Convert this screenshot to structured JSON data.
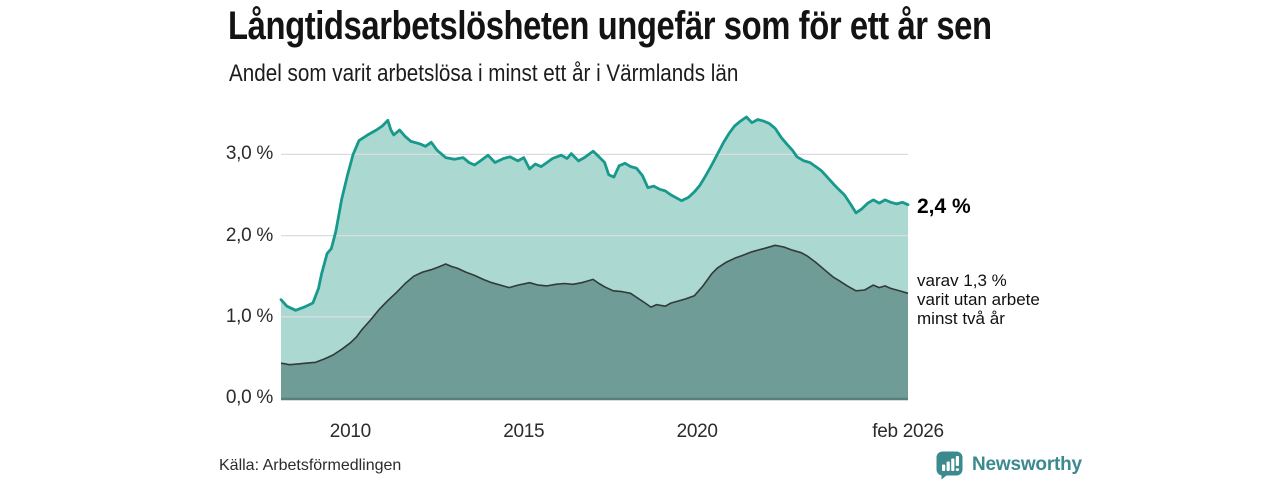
{
  "source": "Källa: Arbetsförmedlingen",
  "branding": {
    "name": "Newsworthy",
    "icon": "newsworthy-bubble-barchart-icon",
    "color": "#3c8a8e"
  },
  "colors": {
    "area_1yr_fill": "#abd8d1",
    "line_1yr": "#17998b",
    "area_2yr_fill": "#6f9c97",
    "line_2yr": "#313b38",
    "grid": "#d9dde2",
    "baseline": "#587f7a",
    "brand_teal": "#3c8a8e",
    "text_dark": "#131313"
  },
  "chart_data": {
    "type": "area",
    "title": "Långtidsarbetslösheten ungefär som för ett år sen",
    "subtitle": "Andel som varit arbetslösa i minst ett år i Värmlands län",
    "unit": "%",
    "xlim": [
      2008.0,
      2026.08
    ],
    "ylim": [
      0,
      3.6
    ],
    "grid": "horizontal",
    "legend_position": "inline-right",
    "y_ticks": [
      {
        "value": 0,
        "label": "0,0 %"
      },
      {
        "value": 1,
        "label": "1,0 %"
      },
      {
        "value": 2,
        "label": "2,0 %"
      },
      {
        "value": 3,
        "label": "3,0 %"
      }
    ],
    "x_ticks": [
      {
        "year": 2010,
        "label": "2010"
      },
      {
        "year": 2015,
        "label": "2015"
      },
      {
        "year": 2020,
        "label": "2020"
      },
      {
        "year": 2026.08,
        "label": "feb 2026"
      }
    ],
    "annotations": {
      "latest_total": "2,4 %",
      "latest_secondary": "varav 1,3 %\nvarit utan arbete\nminst två år"
    },
    "series": [
      {
        "name": "Arbetslösa minst ett år",
        "latest_value": 2.4,
        "points": [
          [
            2008.0,
            1.21
          ],
          [
            2008.17,
            1.13
          ],
          [
            2008.42,
            1.08
          ],
          [
            2008.67,
            1.12
          ],
          [
            2008.92,
            1.17
          ],
          [
            2009.08,
            1.35
          ],
          [
            2009.17,
            1.53
          ],
          [
            2009.33,
            1.78
          ],
          [
            2009.45,
            1.84
          ],
          [
            2009.58,
            2.05
          ],
          [
            2009.75,
            2.45
          ],
          [
            2009.92,
            2.75
          ],
          [
            2010.08,
            3.0
          ],
          [
            2010.25,
            3.17
          ],
          [
            2010.5,
            3.24
          ],
          [
            2010.75,
            3.3
          ],
          [
            2010.92,
            3.35
          ],
          [
            2011.08,
            3.42
          ],
          [
            2011.17,
            3.3
          ],
          [
            2011.25,
            3.24
          ],
          [
            2011.42,
            3.3
          ],
          [
            2011.58,
            3.22
          ],
          [
            2011.75,
            3.16
          ],
          [
            2012.0,
            3.13
          ],
          [
            2012.17,
            3.1
          ],
          [
            2012.33,
            3.15
          ],
          [
            2012.5,
            3.05
          ],
          [
            2012.75,
            2.96
          ],
          [
            2013.0,
            2.94
          ],
          [
            2013.25,
            2.96
          ],
          [
            2013.42,
            2.9
          ],
          [
            2013.58,
            2.87
          ],
          [
            2013.75,
            2.92
          ],
          [
            2013.97,
            2.99
          ],
          [
            2014.17,
            2.9
          ],
          [
            2014.42,
            2.95
          ],
          [
            2014.6,
            2.97
          ],
          [
            2014.83,
            2.92
          ],
          [
            2015.0,
            2.96
          ],
          [
            2015.17,
            2.82
          ],
          [
            2015.33,
            2.88
          ],
          [
            2015.5,
            2.85
          ],
          [
            2015.67,
            2.9
          ],
          [
            2015.83,
            2.95
          ],
          [
            2016.08,
            2.99
          ],
          [
            2016.25,
            2.95
          ],
          [
            2016.37,
            3.01
          ],
          [
            2016.58,
            2.92
          ],
          [
            2016.75,
            2.96
          ],
          [
            2017.0,
            3.04
          ],
          [
            2017.17,
            2.97
          ],
          [
            2017.33,
            2.9
          ],
          [
            2017.45,
            2.75
          ],
          [
            2017.6,
            2.72
          ],
          [
            2017.75,
            2.86
          ],
          [
            2017.92,
            2.89
          ],
          [
            2018.08,
            2.85
          ],
          [
            2018.25,
            2.83
          ],
          [
            2018.42,
            2.74
          ],
          [
            2018.58,
            2.59
          ],
          [
            2018.75,
            2.61
          ],
          [
            2018.92,
            2.57
          ],
          [
            2019.08,
            2.55
          ],
          [
            2019.25,
            2.5
          ],
          [
            2019.42,
            2.46
          ],
          [
            2019.55,
            2.43
          ],
          [
            2019.75,
            2.47
          ],
          [
            2019.92,
            2.54
          ],
          [
            2020.08,
            2.62
          ],
          [
            2020.25,
            2.74
          ],
          [
            2020.42,
            2.87
          ],
          [
            2020.58,
            3.0
          ],
          [
            2020.75,
            3.14
          ],
          [
            2020.92,
            3.26
          ],
          [
            2021.08,
            3.35
          ],
          [
            2021.25,
            3.41
          ],
          [
            2021.42,
            3.46
          ],
          [
            2021.58,
            3.39
          ],
          [
            2021.75,
            3.43
          ],
          [
            2021.92,
            3.41
          ],
          [
            2022.08,
            3.38
          ],
          [
            2022.25,
            3.32
          ],
          [
            2022.42,
            3.21
          ],
          [
            2022.58,
            3.13
          ],
          [
            2022.75,
            3.05
          ],
          [
            2022.88,
            2.97
          ],
          [
            2023.08,
            2.92
          ],
          [
            2023.25,
            2.9
          ],
          [
            2023.42,
            2.85
          ],
          [
            2023.58,
            2.8
          ],
          [
            2023.75,
            2.72
          ],
          [
            2023.92,
            2.64
          ],
          [
            2024.08,
            2.57
          ],
          [
            2024.25,
            2.5
          ],
          [
            2024.42,
            2.39
          ],
          [
            2024.58,
            2.28
          ],
          [
            2024.75,
            2.33
          ],
          [
            2024.92,
            2.4
          ],
          [
            2025.08,
            2.44
          ],
          [
            2025.25,
            2.4
          ],
          [
            2025.42,
            2.44
          ],
          [
            2025.58,
            2.41
          ],
          [
            2025.75,
            2.39
          ],
          [
            2025.92,
            2.41
          ],
          [
            2026.08,
            2.38
          ]
        ]
      },
      {
        "name": "Utan arbete minst två år",
        "latest_value": 1.3,
        "points": [
          [
            2008.0,
            0.43
          ],
          [
            2008.25,
            0.41
          ],
          [
            2008.5,
            0.42
          ],
          [
            2008.75,
            0.43
          ],
          [
            2009.0,
            0.44
          ],
          [
            2009.25,
            0.48
          ],
          [
            2009.5,
            0.53
          ],
          [
            2009.75,
            0.6
          ],
          [
            2010.0,
            0.68
          ],
          [
            2010.17,
            0.75
          ],
          [
            2010.33,
            0.84
          ],
          [
            2010.58,
            0.96
          ],
          [
            2010.83,
            1.09
          ],
          [
            2011.08,
            1.2
          ],
          [
            2011.33,
            1.3
          ],
          [
            2011.58,
            1.41
          ],
          [
            2011.83,
            1.5
          ],
          [
            2012.08,
            1.55
          ],
          [
            2012.33,
            1.58
          ],
          [
            2012.58,
            1.62
          ],
          [
            2012.75,
            1.65
          ],
          [
            2012.92,
            1.62
          ],
          [
            2013.08,
            1.6
          ],
          [
            2013.33,
            1.55
          ],
          [
            2013.58,
            1.51
          ],
          [
            2013.83,
            1.46
          ],
          [
            2014.08,
            1.42
          ],
          [
            2014.33,
            1.39
          ],
          [
            2014.58,
            1.36
          ],
          [
            2014.83,
            1.39
          ],
          [
            2015.17,
            1.42
          ],
          [
            2015.42,
            1.39
          ],
          [
            2015.67,
            1.38
          ],
          [
            2015.92,
            1.4
          ],
          [
            2016.17,
            1.41
          ],
          [
            2016.42,
            1.4
          ],
          [
            2016.67,
            1.42
          ],
          [
            2016.83,
            1.44
          ],
          [
            2017.0,
            1.46
          ],
          [
            2017.17,
            1.41
          ],
          [
            2017.33,
            1.37
          ],
          [
            2017.58,
            1.32
          ],
          [
            2017.83,
            1.31
          ],
          [
            2018.08,
            1.29
          ],
          [
            2018.25,
            1.24
          ],
          [
            2018.5,
            1.17
          ],
          [
            2018.67,
            1.12
          ],
          [
            2018.83,
            1.15
          ],
          [
            2019.08,
            1.13
          ],
          [
            2019.25,
            1.17
          ],
          [
            2019.42,
            1.19
          ],
          [
            2019.67,
            1.22
          ],
          [
            2019.92,
            1.26
          ],
          [
            2020.17,
            1.38
          ],
          [
            2020.42,
            1.53
          ],
          [
            2020.58,
            1.6
          ],
          [
            2020.83,
            1.67
          ],
          [
            2021.08,
            1.72
          ],
          [
            2021.33,
            1.76
          ],
          [
            2021.58,
            1.8
          ],
          [
            2021.83,
            1.83
          ],
          [
            2022.0,
            1.85
          ],
          [
            2022.25,
            1.88
          ],
          [
            2022.5,
            1.86
          ],
          [
            2022.75,
            1.82
          ],
          [
            2023.0,
            1.79
          ],
          [
            2023.17,
            1.75
          ],
          [
            2023.42,
            1.67
          ],
          [
            2023.67,
            1.58
          ],
          [
            2023.92,
            1.49
          ],
          [
            2024.08,
            1.45
          ],
          [
            2024.33,
            1.38
          ],
          [
            2024.58,
            1.32
          ],
          [
            2024.83,
            1.33
          ],
          [
            2025.08,
            1.39
          ],
          [
            2025.25,
            1.36
          ],
          [
            2025.42,
            1.38
          ],
          [
            2025.58,
            1.35
          ],
          [
            2025.75,
            1.33
          ],
          [
            2025.92,
            1.31
          ],
          [
            2026.08,
            1.29
          ]
        ]
      }
    ]
  }
}
